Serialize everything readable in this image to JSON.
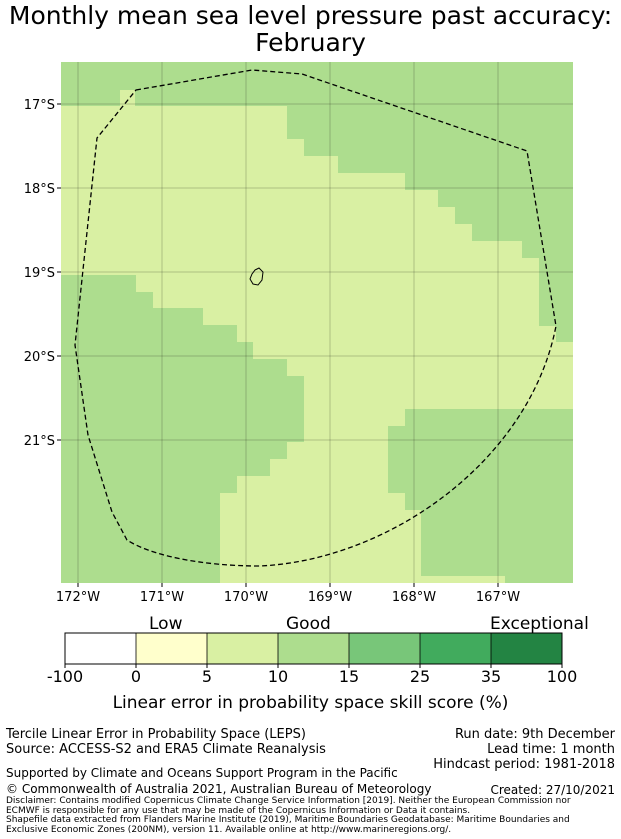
{
  "title_line1": "Monthly mean sea level pressure past accuracy:",
  "title_line2": "February",
  "map": {
    "lat_labels": [
      "17°S",
      "18°S",
      "19°S",
      "20°S",
      "21°S"
    ],
    "lon_labels": [
      "172°W",
      "171°W",
      "170°W",
      "169°W",
      "168°W",
      "167°W"
    ],
    "colors": {
      "low": "#ffffcc",
      "good_light": "#d9f0a3",
      "good": "#addd8e",
      "border": "#000000"
    }
  },
  "colorbar": {
    "category_labels": [
      "Low",
      "Good",
      "Exceptional"
    ],
    "ticks": [
      "-100",
      "0",
      "5",
      "10",
      "15",
      "25",
      "35",
      "100"
    ],
    "colors": [
      "#ffffff",
      "#ffffcc",
      "#d9f0a3",
      "#addd8e",
      "#78c679",
      "#41ab5d",
      "#238443"
    ],
    "label": "Linear error in probability space skill score (%)"
  },
  "info": {
    "left_line1": "Tercile Linear Error in Probability Space (LEPS)",
    "left_line2": "Source: ACCESS-S2 and ERA5 Climate Reanalysis",
    "run_date": "Run date: 9th December",
    "lead_time": "Lead time: 1 month",
    "hindcast": "Hindcast period: 1981-2018",
    "supported": "Supported by Climate and Oceans Support Program in the Pacific",
    "copyright": "© Commonwealth of Australia 2021, Australian Bureau of Meteorology",
    "created": "Created: 27/10/2021",
    "disclaimer1": "Disclaimer: Contains modified Copernicus Climate Change Service Information [2019]. Neither the European Commission nor",
    "disclaimer2": "ECMWF is responsible for any use that may be made of the Copernicus Information or Data it contains.",
    "shapefile1": "Shapefile data extracted from Flanders Marine Institute (2019), Maritime Boundaries Geodatabase: Maritime Boundaries and",
    "shapefile2": "Exclusive Economic Zones (200NM), version 11. Available online at http://www.marineregions.org/."
  }
}
